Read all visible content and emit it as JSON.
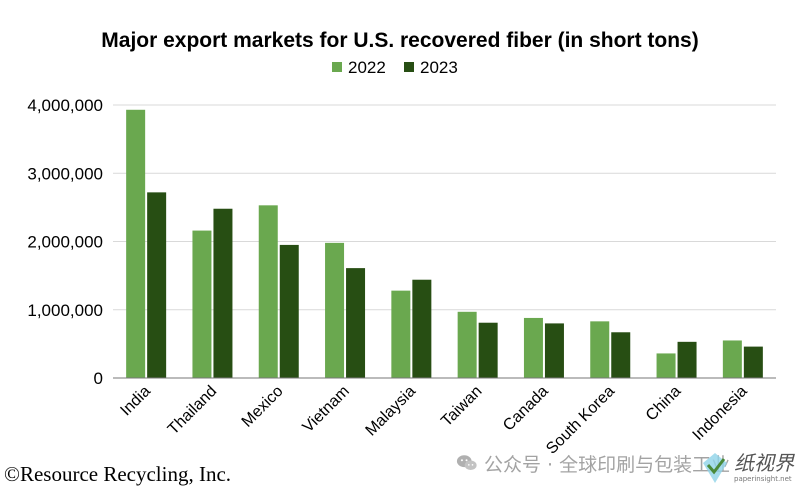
{
  "chart_data": {
    "type": "bar",
    "title": "Major export markets for U.S. recovered fiber (in short tons)",
    "categories": [
      "India",
      "Thailand",
      "Mexico",
      "Vietnam",
      "Malaysia",
      "Taiwan",
      "Canada",
      "South Korea",
      "China",
      "Indonesia"
    ],
    "series": [
      {
        "name": "2022",
        "color": "#6aa84f",
        "values": [
          3930000,
          2160000,
          2530000,
          1980000,
          1280000,
          970000,
          880000,
          830000,
          360000,
          550000
        ]
      },
      {
        "name": "2023",
        "color": "#274e13",
        "values": [
          2720000,
          2480000,
          1950000,
          1610000,
          1440000,
          810000,
          800000,
          670000,
          530000,
          460000
        ]
      }
    ],
    "yticks": [
      "0",
      "1,000,000",
      "2,000,000",
      "3,000,000",
      "4,000,000"
    ],
    "ylim": [
      0,
      4000000
    ],
    "grid": true,
    "legend": "top-center",
    "xlabel": "",
    "ylabel": ""
  },
  "footer": {
    "copyright": "©Resource Recycling, Inc.",
    "watermark_text": "公众号 · 全球印刷与包装工业",
    "watermark_icon": "wechat-icon",
    "logo_text": "纸视界",
    "logo_sub": "paperinsight.net"
  }
}
